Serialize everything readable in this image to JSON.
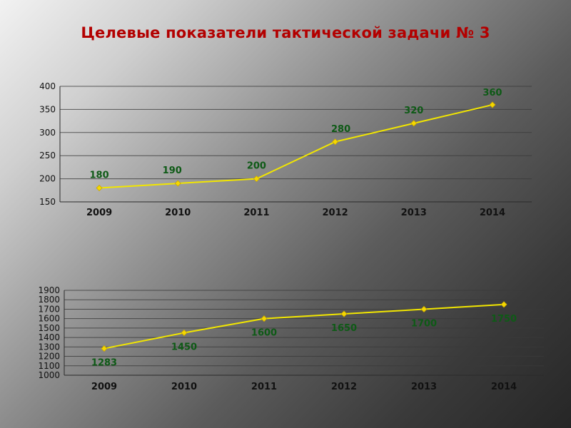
{
  "title": "Целевые показатели тактической задачи № 3",
  "chart_data": [
    {
      "type": "line",
      "categories": [
        "2009",
        "2010",
        "2011",
        "2012",
        "2013",
        "2014"
      ],
      "values": [
        180,
        190,
        200,
        280,
        320,
        360
      ],
      "data_labels": [
        "180",
        "190",
        "200",
        "280",
        "320",
        "360"
      ],
      "ylim": [
        150,
        400
      ],
      "yticks": [
        150,
        200,
        250,
        300,
        350,
        400
      ],
      "grid": true,
      "line_color": "#f2e600",
      "marker_color": "#f5d800",
      "label_color": "#0e5a16"
    },
    {
      "type": "line",
      "categories": [
        "2009",
        "2010",
        "2011",
        "2012",
        "2013",
        "2014"
      ],
      "values": [
        1283,
        1450,
        1600,
        1650,
        1700,
        1750
      ],
      "data_labels": [
        "1283",
        "1450",
        "1600",
        "1650",
        "1700",
        "1750"
      ],
      "ylim": [
        1000,
        1900
      ],
      "yticks": [
        1000,
        1100,
        1200,
        1300,
        1400,
        1500,
        1600,
        1700,
        1800,
        1900
      ],
      "grid": true,
      "line_color": "#f2e600",
      "marker_color": "#f5d800",
      "label_color": "#0e5a16"
    }
  ]
}
